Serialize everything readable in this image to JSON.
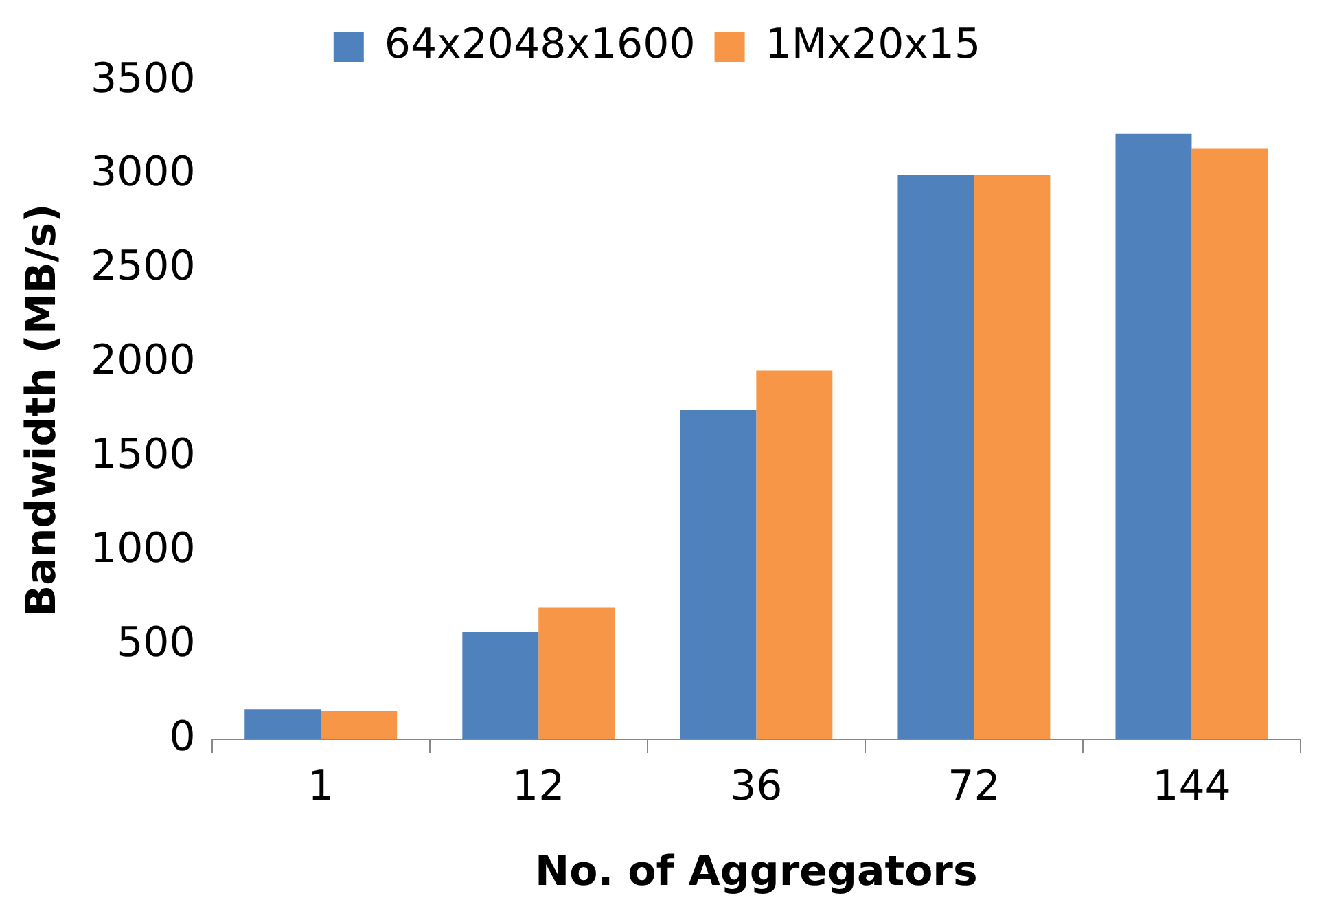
{
  "chart_data": {
    "type": "bar",
    "xlabel": "No. of Aggregators",
    "ylabel": "Bandwidth (MB/s)",
    "categories": [
      "1",
      "12",
      "36",
      "72",
      "144"
    ],
    "series": [
      {
        "name": "64x2048x1600",
        "color": "#4f81bd",
        "values": [
          160,
          570,
          1750,
          3000,
          3220
        ]
      },
      {
        "name": "1Mx20x15",
        "color": "#f79646",
        "values": [
          150,
          700,
          1960,
          3000,
          3140
        ]
      }
    ],
    "ylim": [
      0,
      3500
    ],
    "yticks": [
      0,
      500,
      1000,
      1500,
      2000,
      2500,
      3000,
      3500
    ],
    "grid": false,
    "legend": "top"
  }
}
